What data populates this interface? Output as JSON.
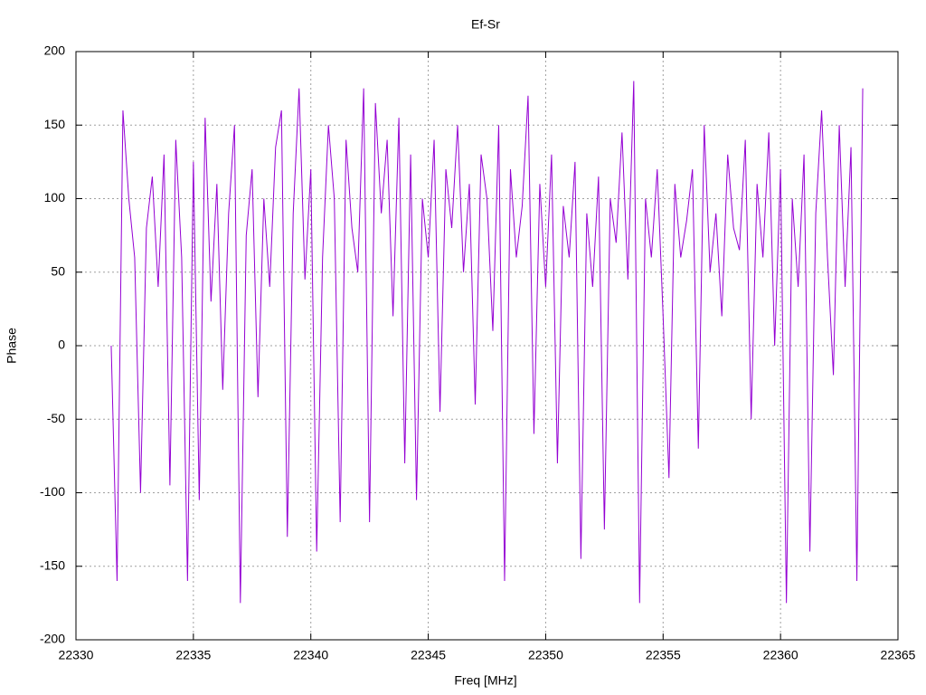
{
  "chart_data": {
    "type": "line",
    "title": "Ef-Sr",
    "x_label": "Freq [MHz]",
    "y_label": "Phase",
    "xlim": [
      22330,
      22365
    ],
    "xticks": [
      22330,
      22335,
      22340,
      22345,
      22350,
      22355,
      22360,
      22365
    ],
    "ylim": [
      -200,
      200
    ],
    "yticks": [
      -200,
      -150,
      -100,
      -50,
      0,
      50,
      100,
      150,
      200
    ],
    "grid": true,
    "x": [
      22331.5,
      22331.75,
      22332,
      22332.25,
      22332.5,
      22332.75,
      22333,
      22333.25,
      22333.5,
      22333.75,
      22334,
      22334.25,
      22334.5,
      22334.75,
      22335,
      22335.25,
      22335.5,
      22335.75,
      22336,
      22336.25,
      22336.5,
      22336.75,
      22337,
      22337.25,
      22337.5,
      22337.75,
      22338,
      22338.25,
      22338.5,
      22338.75,
      22339,
      22339.25,
      22339.5,
      22339.75,
      22340,
      22340.25,
      22340.5,
      22340.75,
      22341,
      22341.25,
      22341.5,
      22341.75,
      22342,
      22342.25,
      22342.5,
      22342.75,
      22343,
      22343.25,
      22343.5,
      22343.75,
      22344,
      22344.25,
      22344.5,
      22344.75,
      22345,
      22345.25,
      22345.5,
      22345.75,
      22346,
      22346.25,
      22346.5,
      22346.75,
      22347,
      22347.25,
      22347.5,
      22347.75,
      22348,
      22348.25,
      22348.5,
      22348.75,
      22349,
      22349.25,
      22349.5,
      22349.75,
      22350,
      22350.25,
      22350.5,
      22350.75,
      22351,
      22351.25,
      22351.5,
      22351.75,
      22352,
      22352.25,
      22352.5,
      22352.75,
      22353,
      22353.25,
      22353.5,
      22353.75,
      22354,
      22354.25,
      22354.5,
      22354.75,
      22355,
      22355.25,
      22355.5,
      22355.75,
      22356,
      22356.25,
      22356.5,
      22356.75,
      22357,
      22357.25,
      22357.5,
      22357.75,
      22358,
      22358.25,
      22358.5,
      22358.75,
      22359,
      22359.25,
      22359.5,
      22359.75,
      22360,
      22360.25,
      22360.5,
      22360.75,
      22361,
      22361.25,
      22361.5,
      22361.75,
      22362,
      22362.25,
      22362.5,
      22362.75,
      22363,
      22363.25,
      22363.5
    ],
    "series": [
      {
        "color": "#9400d3",
        "values": [
          0,
          -160,
          160,
          100,
          60,
          -100,
          80,
          115,
          40,
          130,
          -95,
          140,
          60,
          -160,
          125,
          -105,
          155,
          30,
          110,
          -30,
          90,
          150,
          -175,
          75,
          120,
          -35,
          100,
          40,
          135,
          160,
          -130,
          90,
          175,
          45,
          120,
          -140,
          60,
          150,
          100,
          -120,
          140,
          80,
          50,
          175,
          -120,
          165,
          90,
          140,
          20,
          155,
          -80,
          130,
          -105,
          100,
          60,
          140,
          -45,
          120,
          80,
          150,
          50,
          110,
          -40,
          130,
          100,
          10,
          150,
          -160,
          120,
          60,
          95,
          170,
          -60,
          110,
          40,
          130,
          -80,
          95,
          60,
          125,
          -145,
          90,
          40,
          115,
          -125,
          100,
          70,
          145,
          45,
          180,
          -175,
          100,
          60,
          120,
          20,
          -90,
          110,
          60,
          85,
          120,
          -70,
          150,
          50,
          90,
          20,
          130,
          80,
          65,
          140,
          -50,
          110,
          60,
          145,
          0,
          120,
          -175,
          100,
          40,
          130,
          -140,
          90,
          160,
          60,
          -20,
          150,
          40,
          135,
          -160,
          175
        ]
      }
    ]
  }
}
